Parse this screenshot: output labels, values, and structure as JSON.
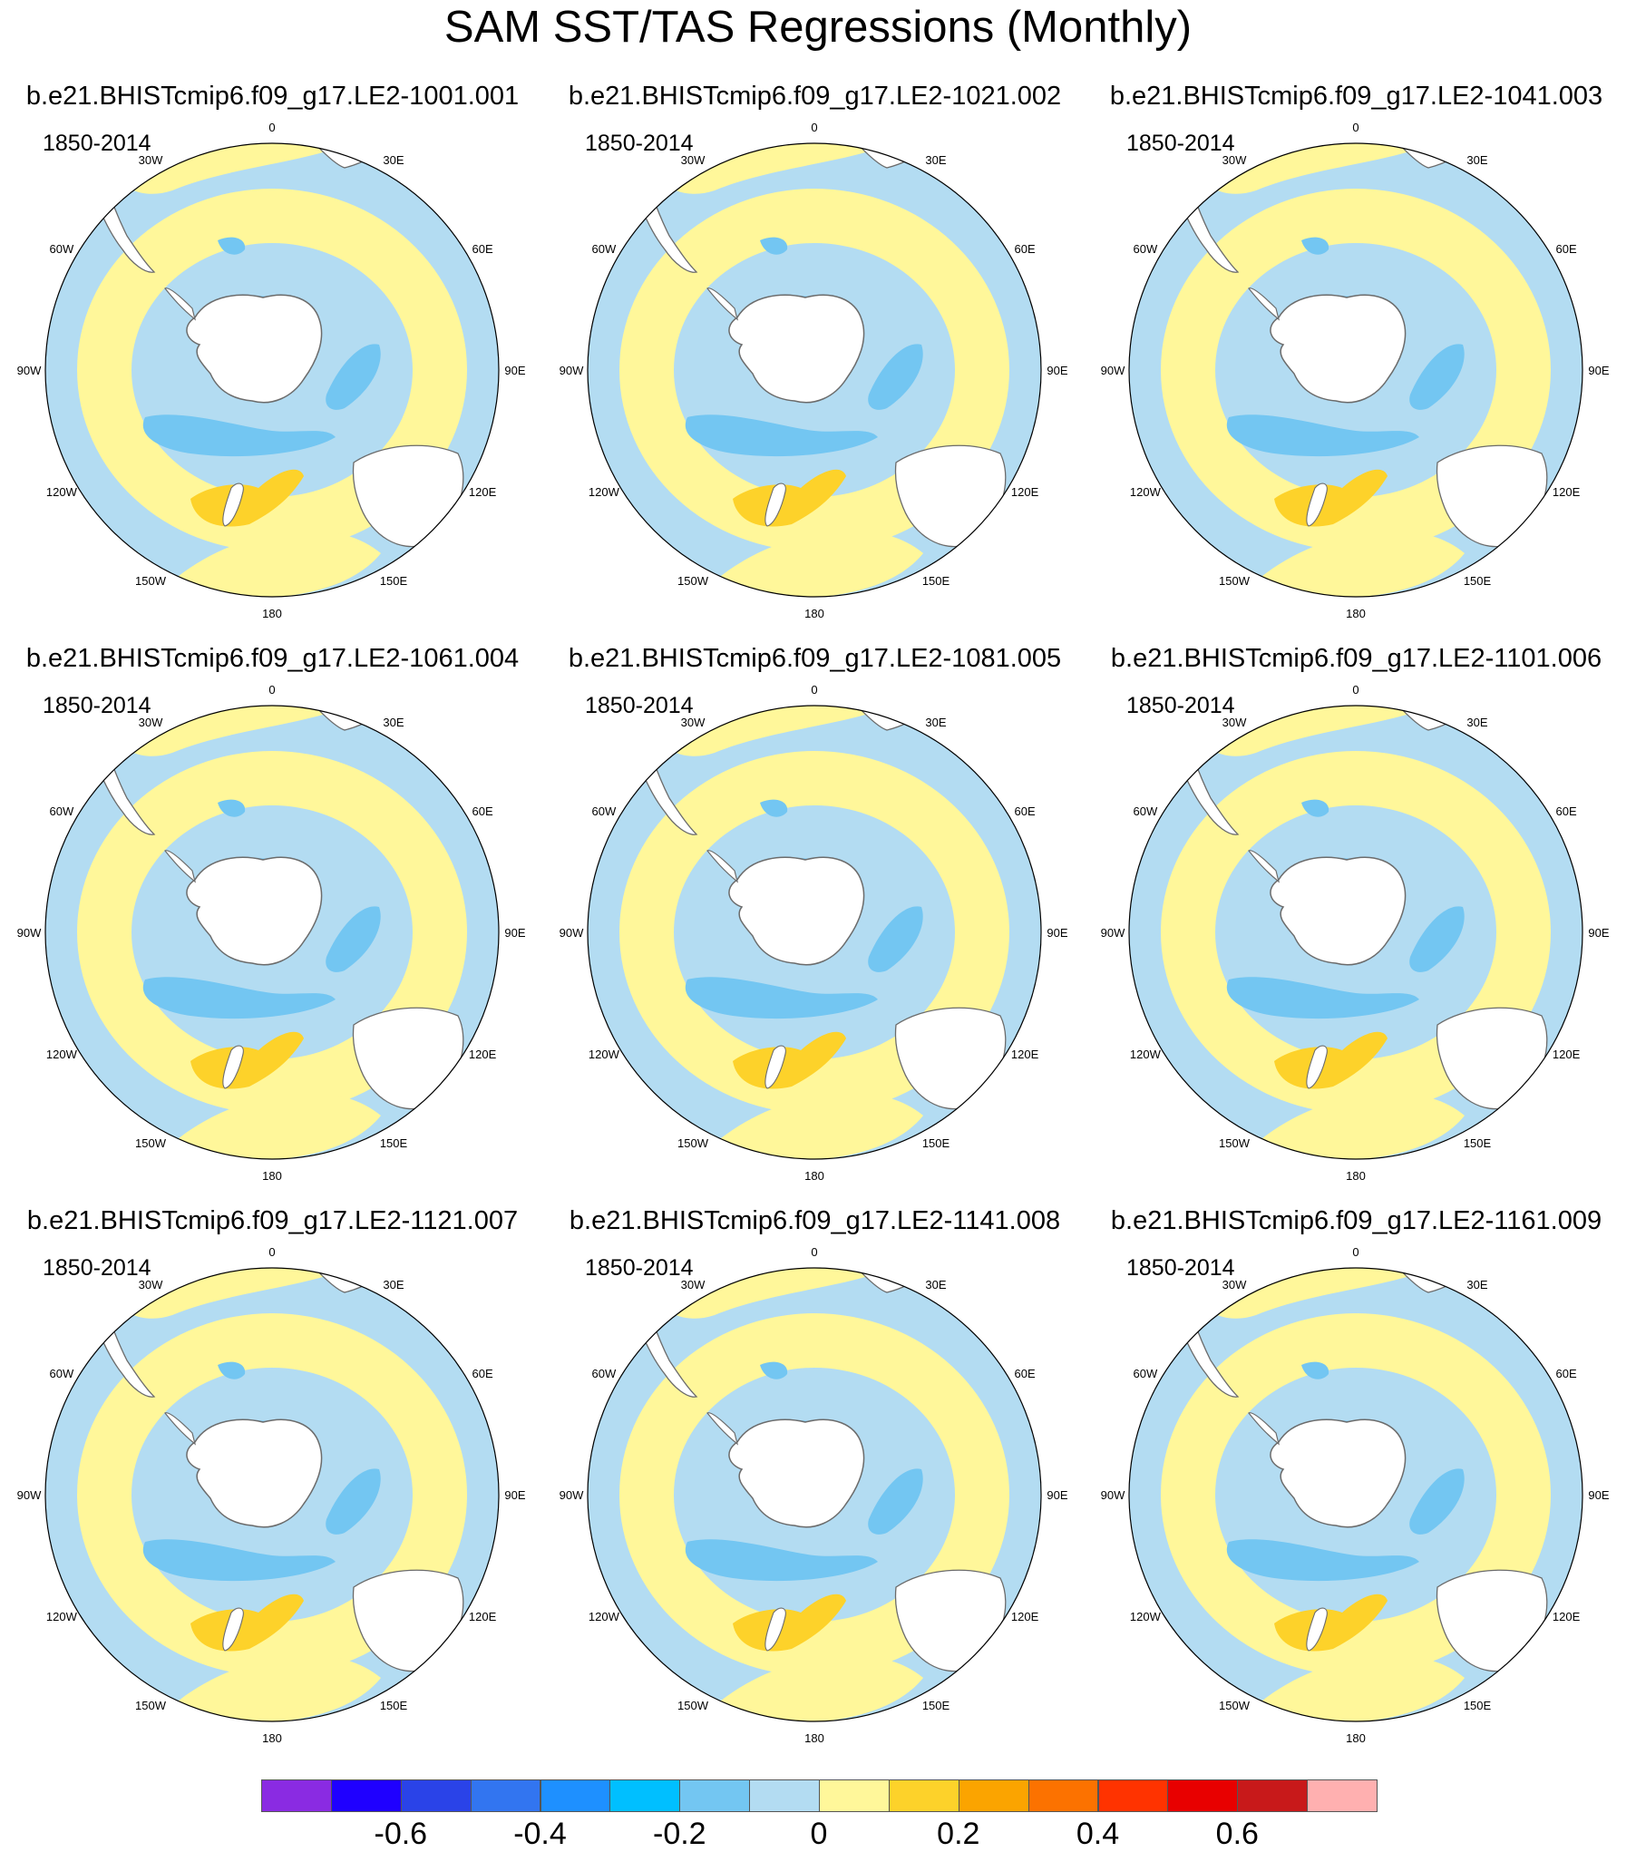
{
  "title": "SAM SST/TAS Regressions (Monthly)",
  "lon_labels": [
    "0",
    "30E",
    "60E",
    "90E",
    "120E",
    "150E",
    "180",
    "150W",
    "120W",
    "90W",
    "60W",
    "30W"
  ],
  "panels": [
    {
      "title": "b.e21.BHISTcmip6.f09_g17.LE2-1001.001",
      "period": "1850-2014"
    },
    {
      "title": "b.e21.BHISTcmip6.f09_g17.LE2-1021.002",
      "period": "1850-2014"
    },
    {
      "title": "b.e21.BHISTcmip6.f09_g17.LE2-1041.003",
      "period": "1850-2014"
    },
    {
      "title": "b.e21.BHISTcmip6.f09_g17.LE2-1061.004",
      "period": "1850-2014"
    },
    {
      "title": "b.e21.BHISTcmip6.f09_g17.LE2-1081.005",
      "period": "1850-2014"
    },
    {
      "title": "b.e21.BHISTcmip6.f09_g17.LE2-1101.006",
      "period": "1850-2014"
    },
    {
      "title": "b.e21.BHISTcmip6.f09_g17.LE2-1121.007",
      "period": "1850-2014"
    },
    {
      "title": "b.e21.BHISTcmip6.f09_g17.LE2-1141.008",
      "period": "1850-2014"
    },
    {
      "title": "b.e21.BHISTcmip6.f09_g17.LE2-1161.009",
      "period": "1850-2014"
    }
  ],
  "colorbar": {
    "colors": [
      "#8a2be2",
      "#1f00ff",
      "#2a43e8",
      "#3275f0",
      "#1e90ff",
      "#00bfff",
      "#73c6f2",
      "#b3dcf2",
      "#fff79a",
      "#fdd22a",
      "#fba400",
      "#fc7200",
      "#ff3300",
      "#e80000",
      "#c8191a",
      "#ffb0b0"
    ],
    "tick_labels": [
      "-0.6",
      "-0.4",
      "-0.2",
      "0",
      "0.2",
      "0.4",
      "0.6"
    ]
  },
  "palette": {
    "light_blue": "#b3dcf2",
    "mid_blue": "#73c6f2",
    "light_yellow": "#fff79a",
    "orange_yellow": "#fdd22a",
    "land": "#ffffff",
    "coast": "#6b6b6b"
  }
}
